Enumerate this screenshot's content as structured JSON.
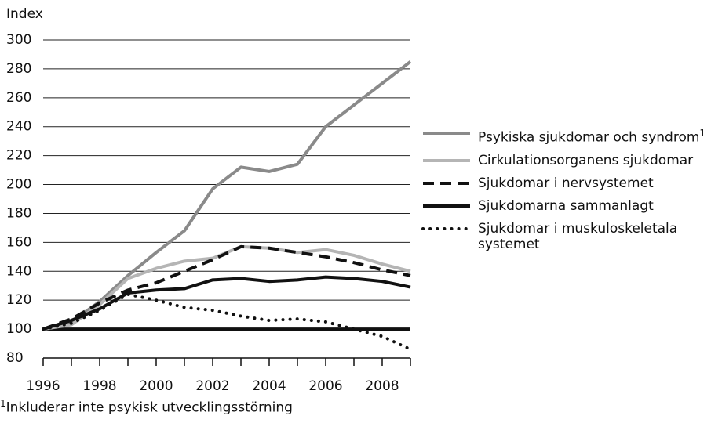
{
  "chart_data": {
    "type": "line",
    "y_axis_label": "Index",
    "x": [
      1996,
      1997,
      1998,
      1999,
      2000,
      2001,
      2002,
      2003,
      2004,
      2005,
      2006,
      2007,
      2008,
      2009
    ],
    "xlim": [
      1996,
      2009
    ],
    "xticks": [
      1996,
      1998,
      2000,
      2002,
      2004,
      2006,
      2008
    ],
    "xminorticks": [
      1997,
      1999,
      2001,
      2003,
      2005,
      2007,
      2009
    ],
    "ylim": [
      80,
      300
    ],
    "yticks": [
      80,
      100,
      120,
      140,
      160,
      180,
      200,
      220,
      240,
      260,
      280,
      300
    ],
    "grid": true,
    "reference_line": 100,
    "legend": "right",
    "series": [
      {
        "name": "Psykiska sjukdomar och syndrom",
        "note": "1",
        "color": "#8a8a8a",
        "style": "solid",
        "width": 4,
        "values": [
          100,
          105,
          119,
          137,
          153,
          168,
          197,
          212,
          209,
          214,
          240,
          255,
          270,
          285
        ]
      },
      {
        "name": "Cirkulationsorganens sjukdomar",
        "color": "#b5b5b5",
        "style": "solid",
        "width": 4,
        "values": [
          100,
          103,
          117,
          135,
          142,
          147,
          149,
          157,
          156,
          153,
          155,
          151,
          145,
          140
        ]
      },
      {
        "name": "Sjukdomar i nervsystemet",
        "color": "#111111",
        "style": "dashed",
        "width": 4,
        "values": [
          100,
          107,
          118,
          127,
          132,
          140,
          148,
          157,
          156,
          153,
          150,
          146,
          141,
          137
        ]
      },
      {
        "name": "Sjukdomarna sammanlagt",
        "color": "#111111",
        "style": "solid",
        "width": 4,
        "values": [
          100,
          106,
          114,
          125,
          127,
          128,
          134,
          135,
          133,
          134,
          136,
          135,
          133,
          129
        ]
      },
      {
        "name": "Sjukdomar i muskuloskeletala systemet",
        "color": "#111111",
        "style": "dotted",
        "width": 4,
        "values": [
          100,
          104,
          113,
          124,
          120,
          115,
          113,
          109,
          106,
          107,
          105,
          100,
          95,
          86
        ]
      }
    ],
    "footnote": {
      "marker": "1",
      "text": "Inkluderar inte psykisk utvecklingsstörning"
    }
  }
}
